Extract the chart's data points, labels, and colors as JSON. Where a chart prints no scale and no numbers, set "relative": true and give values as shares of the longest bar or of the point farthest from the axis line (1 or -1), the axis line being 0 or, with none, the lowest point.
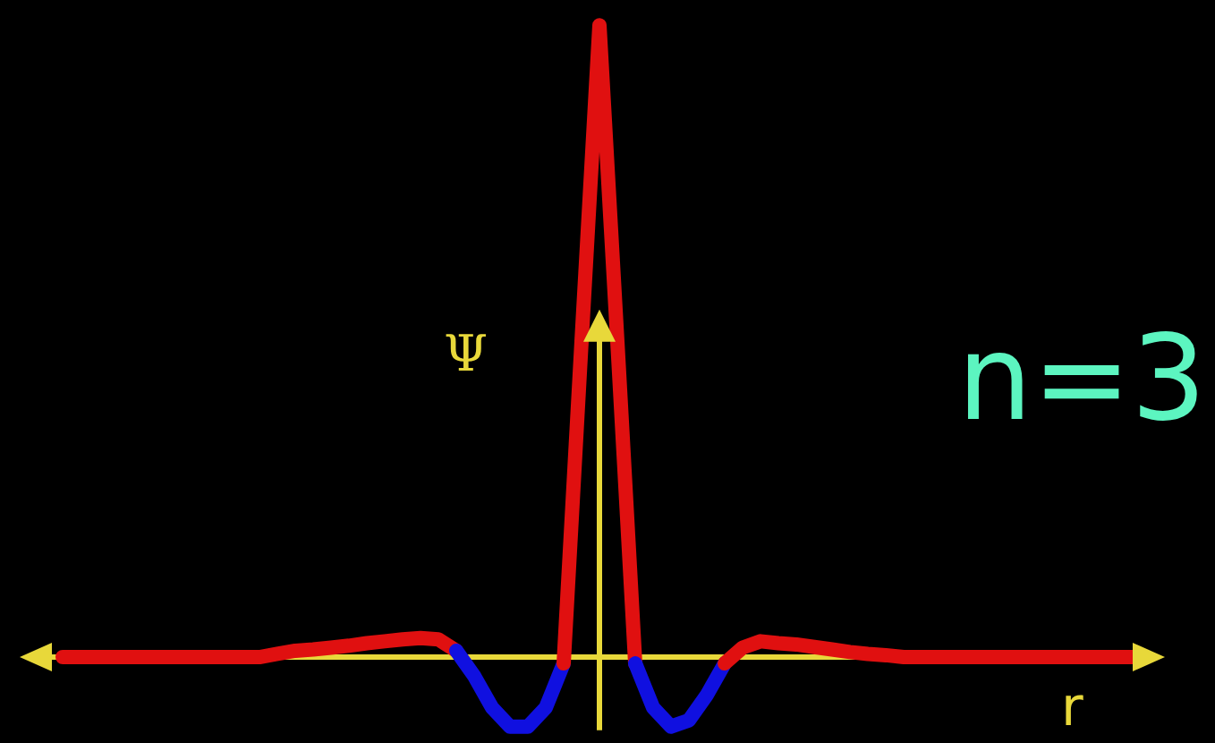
{
  "chart_data": {
    "type": "line",
    "relative": true,
    "xlabel": "r",
    "ylabel": "Ψ",
    "annotations": [
      "n=3"
    ],
    "ref_lines": [
      {
        "axis": "y",
        "value": 0,
        "color": "#e8d83a"
      }
    ],
    "categories": [
      null,
      null,
      null,
      null,
      null,
      null,
      null,
      null,
      null,
      null,
      null,
      null,
      null,
      null,
      null,
      null,
      null,
      null,
      null,
      null,
      null,
      null,
      null,
      null,
      null,
      null,
      null,
      null,
      null,
      null,
      null,
      null,
      null,
      null,
      null,
      null,
      null,
      null,
      null,
      null,
      null,
      null,
      null,
      null,
      null,
      null,
      null,
      null,
      null,
      null,
      null,
      null,
      null,
      null,
      null,
      null,
      null,
      null,
      null,
      null,
      null
    ],
    "series": [
      {
        "color": "#e01010",
        "values": [
          0,
          0,
          0,
          0,
          0,
          0,
          0,
          0,
          0,
          0,
          0,
          0,
          0.005,
          0.01,
          0.012,
          0.015,
          0.018,
          0.022,
          0.025,
          0.028,
          0.03,
          0.028,
          0.01,
          null,
          null,
          null,
          null,
          null,
          null,
          null,
          null,
          null,
          null,
          null,
          null,
          null,
          null,
          null,
          null,
          null,
          null,
          null,
          null,
          null,
          null,
          null,
          null,
          null,
          null,
          null,
          null,
          null,
          null,
          null,
          null,
          null,
          null,
          null,
          null,
          null,
          null
        ]
      },
      {
        "color": "#1010e0",
        "values": [
          null,
          null,
          null,
          null,
          null,
          null,
          null,
          null,
          null,
          null,
          null,
          null,
          null,
          null,
          null,
          null,
          null,
          null,
          null,
          null,
          null,
          null,
          0.01,
          -0.03,
          -0.08,
          -0.11,
          -0.11,
          -0.08,
          -0.01,
          null,
          null,
          null,
          null,
          null,
          null,
          null,
          null,
          null,
          null,
          null,
          null,
          null,
          null,
          null,
          null,
          null,
          null,
          null,
          null,
          null,
          null,
          null,
          null,
          null,
          null,
          null,
          null,
          null,
          null,
          null,
          null
        ]
      },
      {
        "color": "#e01010",
        "values": [
          null,
          null,
          null,
          null,
          null,
          null,
          null,
          null,
          null,
          null,
          null,
          null,
          null,
          null,
          null,
          null,
          null,
          null,
          null,
          null,
          null,
          null,
          null,
          null,
          null,
          null,
          null,
          null,
          -0.01,
          0.5,
          1,
          0.5,
          -0.01,
          null,
          null,
          null,
          null,
          null,
          null,
          null,
          null,
          null,
          null,
          null,
          null,
          null,
          null,
          null,
          null,
          null,
          null,
          null,
          null,
          null,
          null,
          null,
          null,
          null,
          null,
          null,
          null
        ]
      },
      {
        "color": "#1010e0",
        "values": [
          null,
          null,
          null,
          null,
          null,
          null,
          null,
          null,
          null,
          null,
          null,
          null,
          null,
          null,
          null,
          null,
          null,
          null,
          null,
          null,
          null,
          null,
          null,
          null,
          null,
          null,
          null,
          null,
          null,
          null,
          null,
          null,
          -0.01,
          -0.08,
          -0.11,
          -0.1,
          -0.06,
          -0.01,
          null,
          null,
          null,
          null,
          null,
          null,
          null,
          null,
          null,
          null,
          null,
          null,
          null,
          null,
          null,
          null,
          null,
          null,
          null,
          null,
          null,
          null,
          null
        ]
      },
      {
        "color": "#e01010",
        "values": [
          null,
          null,
          null,
          null,
          null,
          null,
          null,
          null,
          null,
          null,
          null,
          null,
          null,
          null,
          null,
          null,
          null,
          null,
          null,
          null,
          null,
          null,
          null,
          null,
          null,
          null,
          null,
          null,
          null,
          null,
          null,
          null,
          null,
          null,
          null,
          null,
          null,
          -0.01,
          0.015,
          0.025,
          0.022,
          0.02,
          0.016,
          0.012,
          0.008,
          0.005,
          0.003,
          0,
          0,
          0,
          0,
          0,
          0,
          0,
          0,
          0,
          0,
          0,
          0,
          0,
          0
        ]
      }
    ]
  }
}
